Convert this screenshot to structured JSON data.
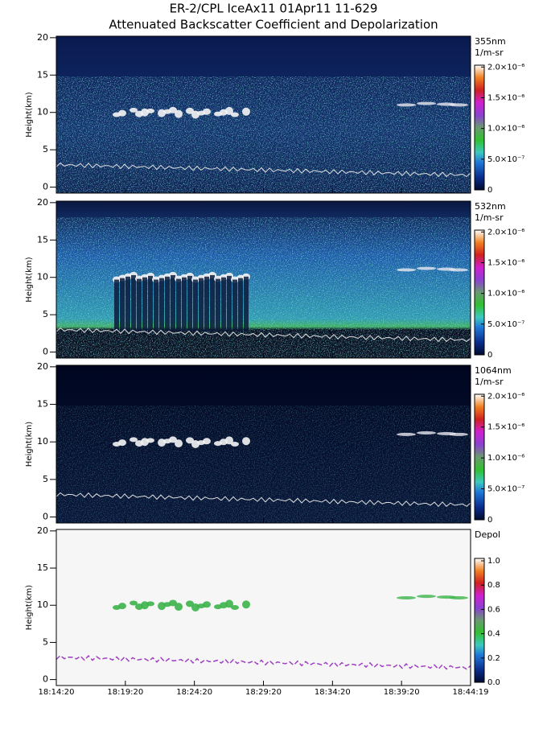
{
  "header": {
    "title": "ER-2/CPL IceAx11 01Apr11 11-629",
    "subtitle": "Attenuated Backscatter Coefficient and Depolarization"
  },
  "chart_data": [
    {
      "type": "heatmap",
      "ylabel": "Height(km)",
      "ylim": [
        -0.8,
        20.2
      ],
      "yticks": [
        0,
        5,
        10,
        15,
        20
      ],
      "colorbar": {
        "label": "355nm",
        "unit": "1/m-sr",
        "clim": [
          0,
          2.03e-06
        ],
        "ticks": [
          {
            "value": 0,
            "label": "0"
          },
          {
            "value": 5e-07,
            "label": "5.0×10⁻⁷"
          },
          {
            "value": 1e-06,
            "label": "1.0×10⁻⁶"
          },
          {
            "value": 1.5e-06,
            "label": "1.5×10⁻⁶"
          },
          {
            "value": 2e-06,
            "label": "2.0×10⁻⁶"
          }
        ]
      }
    },
    {
      "type": "heatmap",
      "ylabel": "Height(km)",
      "ylim": [
        -0.8,
        20.2
      ],
      "yticks": [
        0,
        5,
        10,
        15,
        20
      ],
      "colorbar": {
        "label": "532nm",
        "unit": "1/m-sr",
        "clim": [
          0,
          2.03e-06
        ],
        "ticks": [
          {
            "value": 0,
            "label": "0"
          },
          {
            "value": 5e-07,
            "label": "5.0×10⁻⁷"
          },
          {
            "value": 1e-06,
            "label": "1.0×10⁻⁶"
          },
          {
            "value": 1.5e-06,
            "label": "1.5×10⁻⁶"
          },
          {
            "value": 2e-06,
            "label": "2.0×10⁻⁶"
          }
        ]
      }
    },
    {
      "type": "heatmap",
      "ylabel": "Height(km)",
      "ylim": [
        -0.8,
        20.2
      ],
      "yticks": [
        0,
        5,
        10,
        15,
        20
      ],
      "colorbar": {
        "label": "1064nm",
        "unit": "1/m-sr",
        "clim": [
          0,
          2.03e-06
        ],
        "ticks": [
          {
            "value": 0,
            "label": "0"
          },
          {
            "value": 5e-07,
            "label": "5.0×10⁻⁷"
          },
          {
            "value": 1e-06,
            "label": "1.0×10⁻⁶"
          },
          {
            "value": 1.5e-06,
            "label": "1.5×10⁻⁶"
          },
          {
            "value": 2e-06,
            "label": "2.0×10⁻⁶"
          }
        ]
      }
    },
    {
      "type": "heatmap",
      "ylabel": "Height(km)",
      "ylim": [
        -0.8,
        20.2
      ],
      "yticks": [
        0,
        5,
        10,
        15,
        20
      ],
      "xticks": [
        "18:14:20",
        "18:19:20",
        "18:24:20",
        "18:29:20",
        "18:34:20",
        "18:39:20",
        "18:44:19"
      ],
      "colorbar": {
        "label": "Depol",
        "clim": [
          0,
          1.02
        ],
        "ticks": [
          {
            "value": 0,
            "label": "0.0"
          },
          {
            "value": 0.2,
            "label": "0.2"
          },
          {
            "value": 0.4,
            "label": "0.4"
          },
          {
            "value": 0.6,
            "label": "0.6"
          },
          {
            "value": 0.8,
            "label": "0.8"
          },
          {
            "value": 1,
            "label": "1.0"
          }
        ]
      }
    }
  ]
}
